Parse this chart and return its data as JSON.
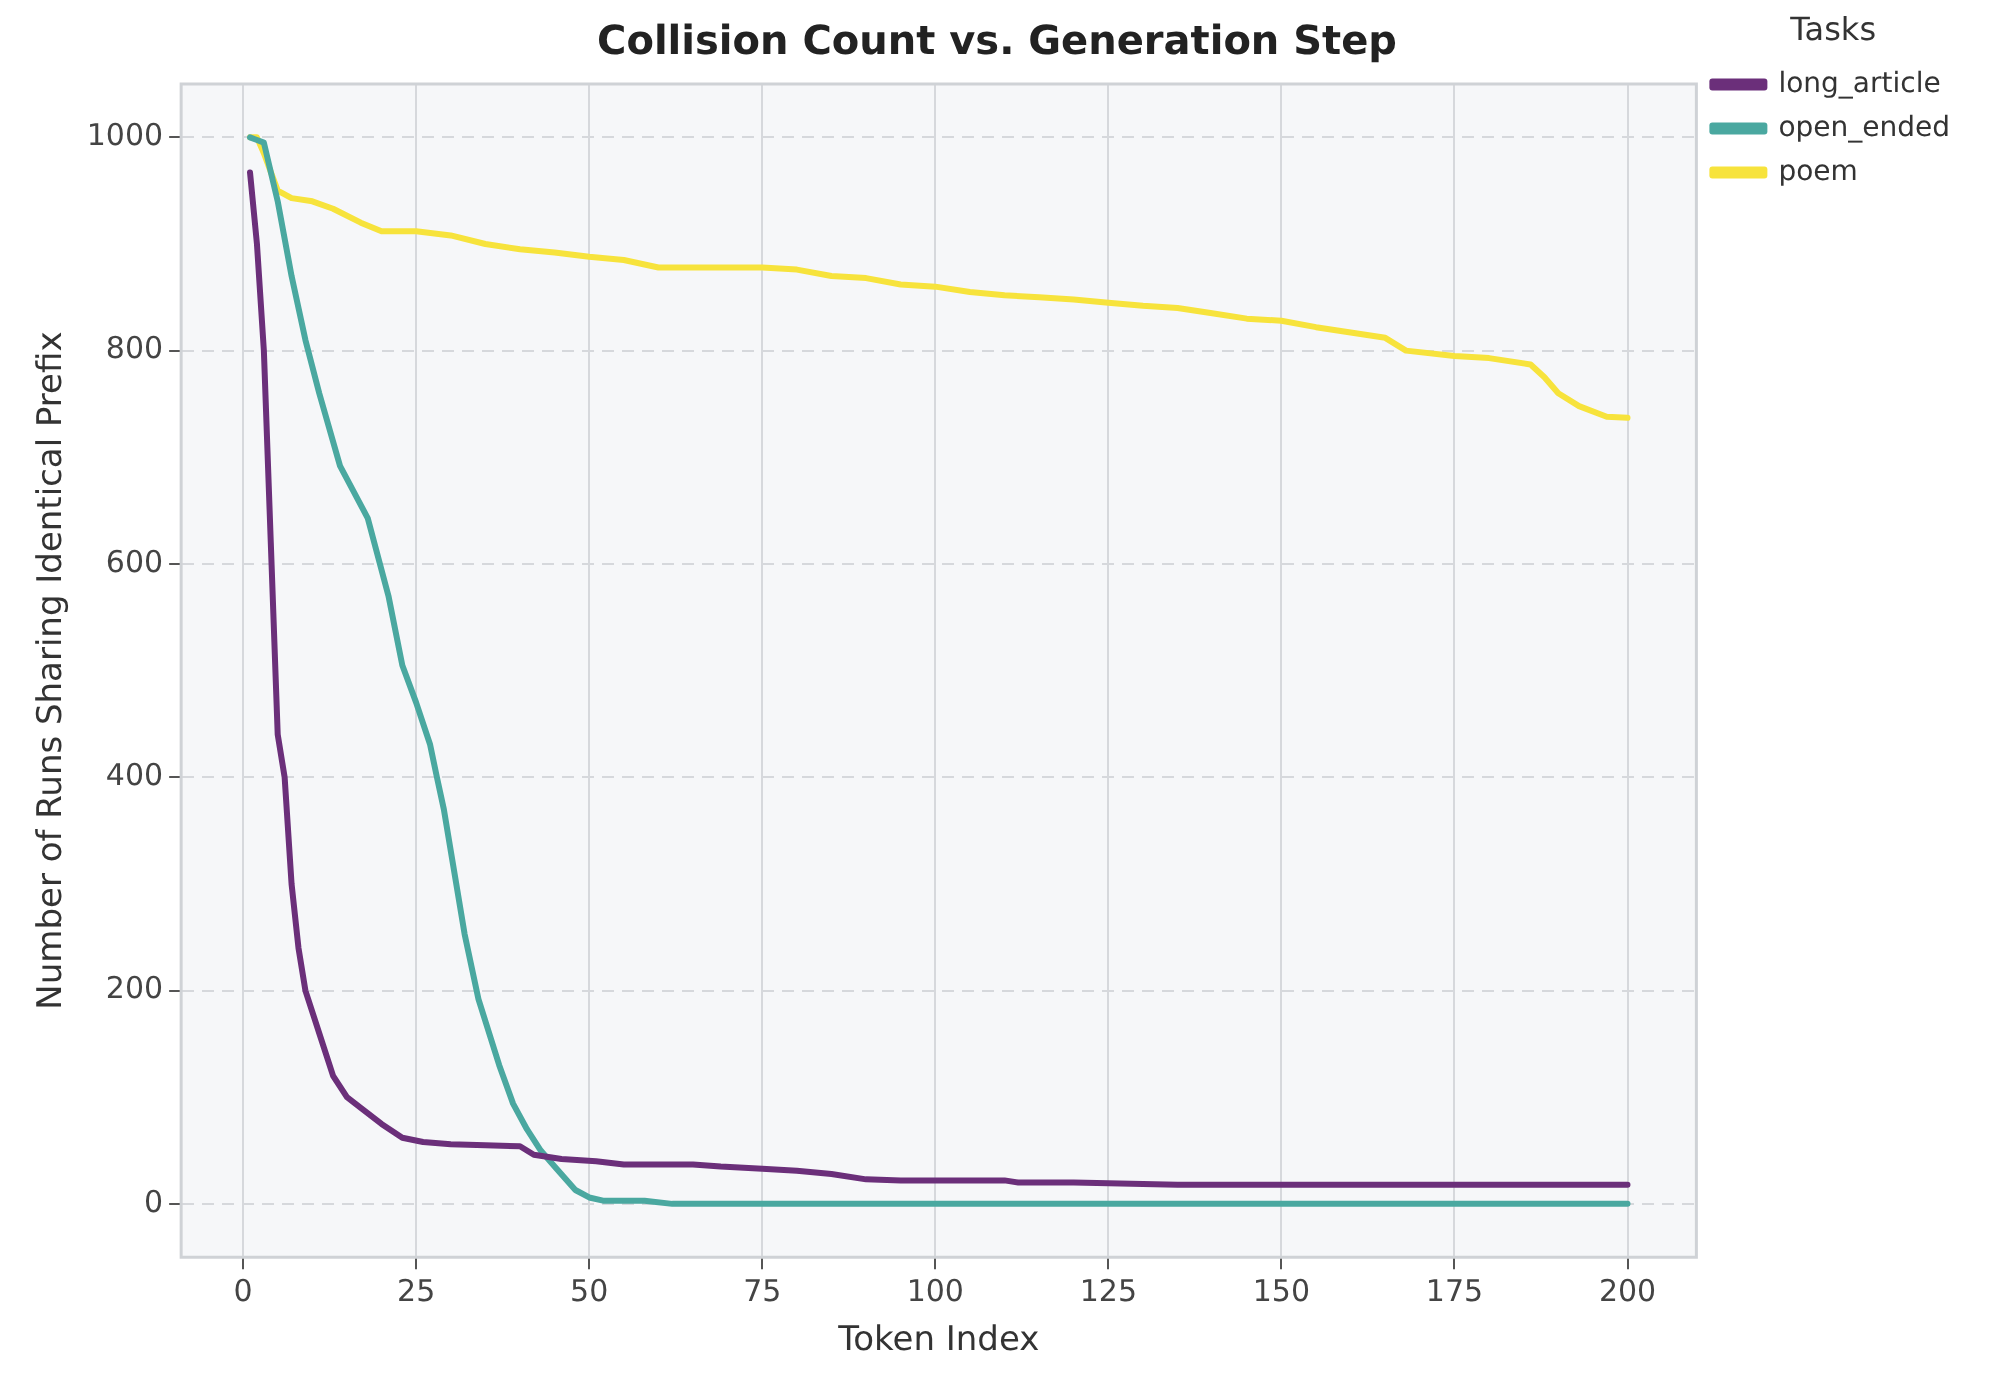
{
  "chart_data": {
    "type": "line",
    "title": "Collision Count vs. Generation Step",
    "xlabel": "Token Index",
    "ylabel": "Number of Runs Sharing Identical Prefix",
    "legend_title": "Tasks",
    "legend": "top right",
    "grid": true,
    "line_style": "solid",
    "marker": "none",
    "xlim": [
      -8.95,
      209.95
    ],
    "xticks": [
      0,
      25,
      50,
      75,
      100,
      125,
      150,
      175,
      200
    ],
    "ylim": [
      -50,
      1050
    ],
    "yticks": [
      0,
      200,
      400,
      600,
      800,
      1000
    ],
    "series": [
      {
        "name": "long_article",
        "color": "#6b2f7a",
        "x": [
          1,
          2,
          3,
          4,
          5,
          6,
          7,
          8,
          9,
          11,
          13,
          15,
          17,
          20,
          23,
          26,
          30,
          35,
          40,
          42,
          46,
          51,
          55,
          60,
          65,
          69,
          75,
          80,
          85,
          90,
          95,
          100,
          110,
          112,
          120,
          135,
          150,
          175,
          200
        ],
        "values": [
          967,
          900,
          800,
          620,
          440,
          400,
          300,
          240,
          200,
          160,
          120,
          100,
          90,
          75,
          62,
          58,
          56,
          55,
          54,
          46,
          42,
          40,
          37,
          37,
          37,
          35,
          33,
          31,
          28,
          23,
          22,
          22,
          22,
          20,
          20,
          18,
          18,
          18,
          18
        ]
      },
      {
        "name": "open_ended",
        "color": "#4aa8a0",
        "x": [
          1,
          3,
          5,
          7,
          9,
          11,
          14,
          18,
          21,
          23,
          25,
          27,
          28,
          29,
          32,
          34,
          37,
          39,
          41,
          43,
          45,
          48,
          50,
          52,
          55,
          58,
          62,
          100,
          150,
          200
        ],
        "values": [
          1000,
          995,
          940,
          870,
          810,
          760,
          692,
          643,
          570,
          505,
          470,
          431,
          400,
          370,
          253,
          192,
          130,
          94,
          70,
          50,
          35,
          13,
          6,
          3,
          3,
          3,
          0,
          0,
          0,
          0
        ]
      },
      {
        "name": "poem",
        "color": "#f7e33c",
        "x": [
          1,
          2,
          3,
          5,
          7,
          10,
          13,
          17,
          20,
          25,
          30,
          35,
          40,
          45,
          50,
          55,
          60,
          75,
          80,
          85,
          90,
          95,
          100,
          105,
          110,
          115,
          120,
          125,
          130,
          135,
          140,
          145,
          150,
          155,
          160,
          165,
          168,
          175,
          180,
          186,
          188,
          190,
          193,
          197,
          200
        ],
        "values": [
          1000,
          1000,
          985,
          950,
          943,
          940,
          933,
          920,
          912,
          912,
          908,
          900,
          895,
          892,
          888,
          885,
          878,
          878,
          876,
          870,
          868,
          862,
          860,
          855,
          852,
          850,
          848,
          845,
          842,
          840,
          835,
          830,
          828,
          822,
          817,
          812,
          800,
          795,
          793,
          787,
          775,
          760,
          748,
          738,
          737
        ]
      }
    ]
  }
}
